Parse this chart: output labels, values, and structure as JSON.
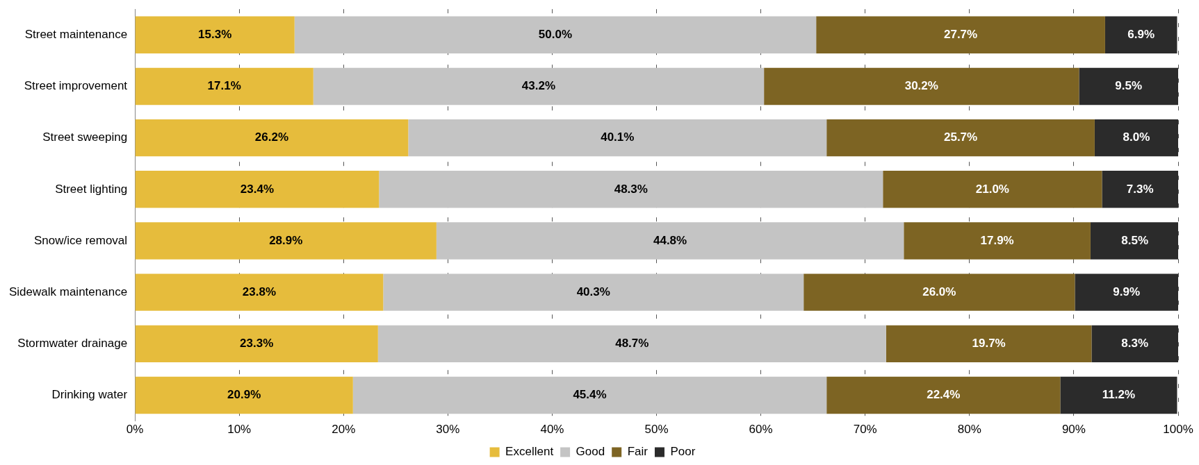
{
  "chart_data": {
    "type": "bar",
    "orientation": "horizontal",
    "stacked": true,
    "categories": [
      "Street maintenance",
      "Street improvement",
      "Street sweeping",
      "Street lighting",
      "Snow/ice removal",
      "Sidewalk maintenance",
      "Stormwater drainage",
      "Drinking water"
    ],
    "series": [
      {
        "name": "Excellent",
        "color": "#e6bc3c",
        "values": [
          15.3,
          17.1,
          26.2,
          23.4,
          28.9,
          23.8,
          23.3,
          20.9
        ],
        "value_labels": [
          "15.3%",
          "17.1%",
          "26.2%",
          "23.4%",
          "28.9%",
          "23.8%",
          "23.3%",
          "20.9%"
        ]
      },
      {
        "name": "Good",
        "color": "#c4c4c4",
        "values": [
          50.0,
          43.2,
          40.1,
          48.3,
          44.8,
          40.3,
          48.7,
          45.4
        ],
        "value_labels": [
          "50.0%",
          "43.2%",
          "40.1%",
          "48.3%",
          "44.8%",
          "40.3%",
          "48.7%",
          "45.4%"
        ]
      },
      {
        "name": "Fair",
        "color": "#7d6423",
        "values": [
          27.7,
          30.2,
          25.7,
          21.0,
          17.9,
          26.0,
          19.7,
          22.4
        ],
        "value_labels": [
          "27.7%",
          "30.2%",
          "25.7%",
          "21.0%",
          "17.9%",
          "26.0%",
          "19.7%",
          "22.4%"
        ]
      },
      {
        "name": "Poor",
        "color": "#2b2b2b",
        "values": [
          6.9,
          9.5,
          8.0,
          7.3,
          8.5,
          9.9,
          8.3,
          11.2
        ],
        "value_labels": [
          "6.9%",
          "9.5%",
          "8.0%",
          "7.3%",
          "8.5%",
          "9.9%",
          "8.3%",
          "11.2%"
        ]
      }
    ],
    "xlim": [
      0,
      100
    ],
    "xticks": [
      {
        "value": 0,
        "label": "0%"
      },
      {
        "value": 10,
        "label": "10%"
      },
      {
        "value": 20,
        "label": "20%"
      },
      {
        "value": 30,
        "label": "30%"
      },
      {
        "value": 40,
        "label": "40%"
      },
      {
        "value": 50,
        "label": "50%"
      },
      {
        "value": 60,
        "label": "60%"
      },
      {
        "value": 70,
        "label": "70%"
      },
      {
        "value": 80,
        "label": "80%"
      },
      {
        "value": 90,
        "label": "90%"
      },
      {
        "value": 100,
        "label": "100%"
      }
    ],
    "grid": "x",
    "legend": "bottom"
  }
}
